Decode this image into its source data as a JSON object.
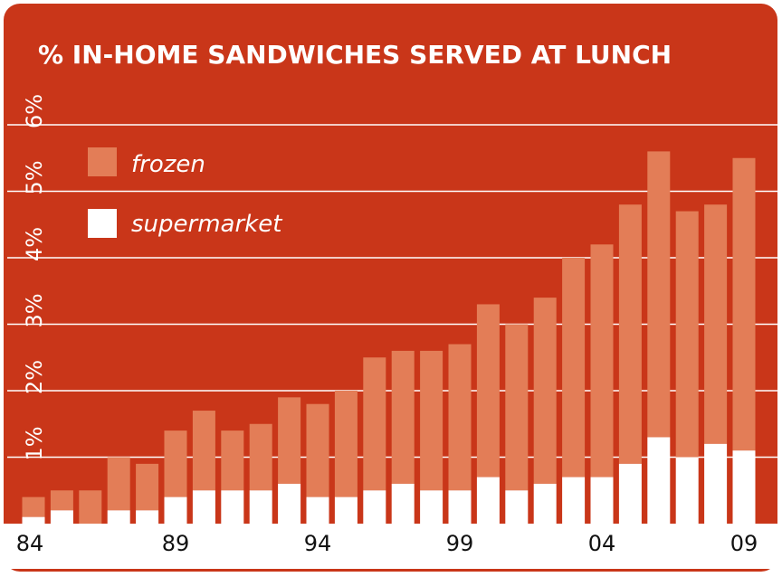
{
  "chart_data": {
    "type": "bar",
    "stacked": true,
    "title": "% IN-HOME SANDWICHES SERVED AT LUNCH",
    "xlabel": "",
    "ylabel": "",
    "ylim": [
      0,
      6
    ],
    "y_ticks": [
      "1%",
      "2%",
      "3%",
      "4%",
      "5%",
      "6%"
    ],
    "x": [
      1984,
      1985,
      1986,
      1987,
      1988,
      1989,
      1990,
      1991,
      1992,
      1993,
      1994,
      1995,
      1996,
      1997,
      1998,
      1999,
      2000,
      2001,
      2002,
      2003,
      2004,
      2005,
      2006,
      2007,
      2008,
      2009
    ],
    "x_tick_labels": [
      {
        "x": 1984,
        "label": "84"
      },
      {
        "x": 1989,
        "label": "89"
      },
      {
        "x": 1994,
        "label": "94"
      },
      {
        "x": 1999,
        "label": "99"
      },
      {
        "x": 2004,
        "label": "04"
      },
      {
        "x": 2009,
        "label": "09"
      }
    ],
    "series": [
      {
        "name": "supermarket",
        "color": "#ffffff",
        "values": [
          0.1,
          0.2,
          0.0,
          0.2,
          0.2,
          0.4,
          0.5,
          0.5,
          0.5,
          0.6,
          0.4,
          0.4,
          0.5,
          0.6,
          0.5,
          0.5,
          0.7,
          0.5,
          0.6,
          0.7,
          0.7,
          0.9,
          1.3,
          1.0,
          1.2,
          1.1
        ]
      },
      {
        "name": "frozen",
        "color": "#e37d57",
        "values": [
          0.3,
          0.3,
          0.5,
          0.8,
          0.7,
          1.0,
          1.2,
          0.9,
          1.0,
          1.3,
          1.4,
          1.6,
          2.0,
          2.0,
          2.1,
          2.2,
          2.6,
          2.5,
          2.8,
          3.3,
          3.5,
          3.9,
          4.3,
          3.7,
          3.6,
          4.4
        ]
      }
    ],
    "legend": {
      "placement": "top-left"
    },
    "grid": true,
    "colors": {
      "background": "#c93619",
      "grid": "#ffffff",
      "text": "#ffffff"
    }
  }
}
